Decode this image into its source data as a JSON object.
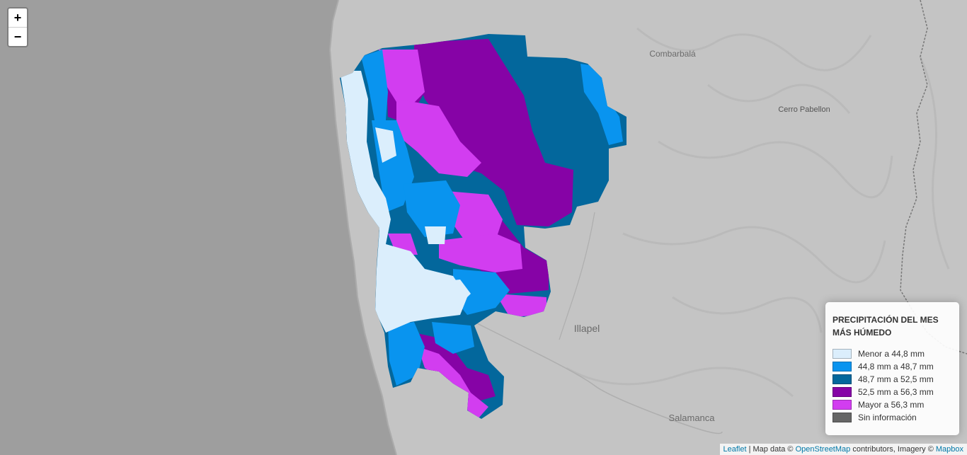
{
  "map": {
    "places": [
      {
        "name": "Combarbalá",
        "size": 12
      },
      {
        "name": "Cerro Pabellon",
        "size": 11
      },
      {
        "name": "Illapel",
        "size": 14
      },
      {
        "name": "Salamanca",
        "size": 13
      }
    ]
  },
  "zoom": {
    "in_label": "+",
    "out_label": "−"
  },
  "legend": {
    "title": "PRECIPITACIÓN DEL MES MÁS HÚMEDO",
    "items": [
      {
        "label": "Menor a 44,8 mm",
        "color": "#dbeefc"
      },
      {
        "label": "44,8 mm a 48,7 mm",
        "color": "#0994ef"
      },
      {
        "label": "48,7 mm a 52,5 mm",
        "color": "#03679c"
      },
      {
        "label": "52,5 mm a 56,3 mm",
        "color": "#8603a6"
      },
      {
        "label": "Mayor a 56,3 mm",
        "color": "#d23df0"
      },
      {
        "label": "Sin información",
        "color": "#666666"
      }
    ]
  },
  "attribution": {
    "leaflet": "Leaflet",
    "sep": " | Map data © ",
    "osm": "OpenStreetMap",
    "mid": " contributors, Imagery © ",
    "mapbox": "Mapbox"
  }
}
